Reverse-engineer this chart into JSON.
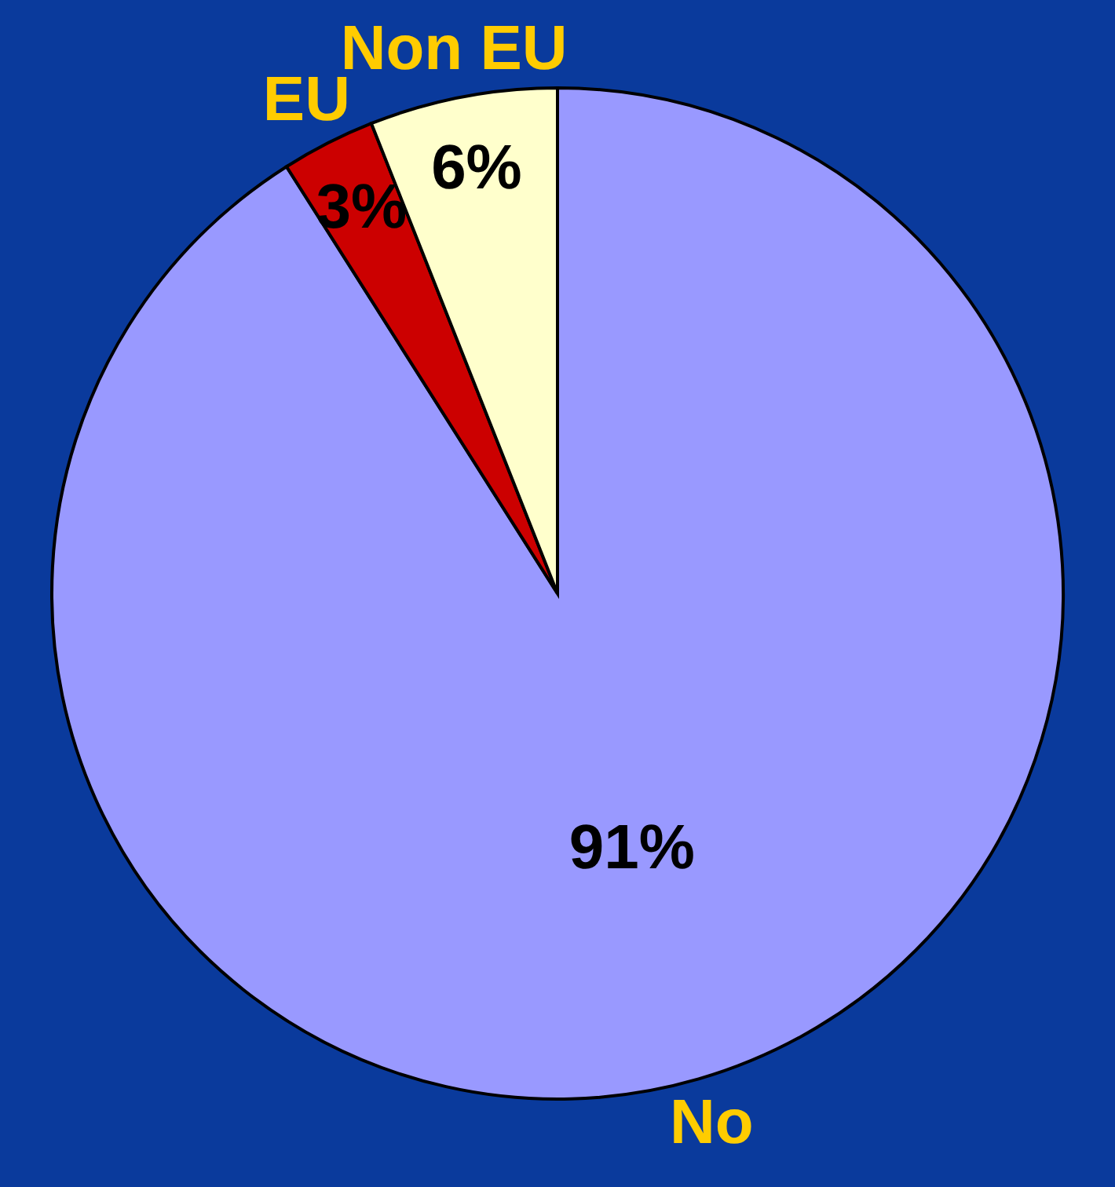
{
  "chart_data": {
    "type": "pie",
    "categories": [
      "No",
      "EU",
      "Non EU"
    ],
    "values": [
      91,
      3,
      6
    ],
    "colors": [
      "#9999ff",
      "#cc0000",
      "#ffffcc"
    ],
    "value_labels": [
      "91%",
      "3%",
      "6%"
    ]
  }
}
